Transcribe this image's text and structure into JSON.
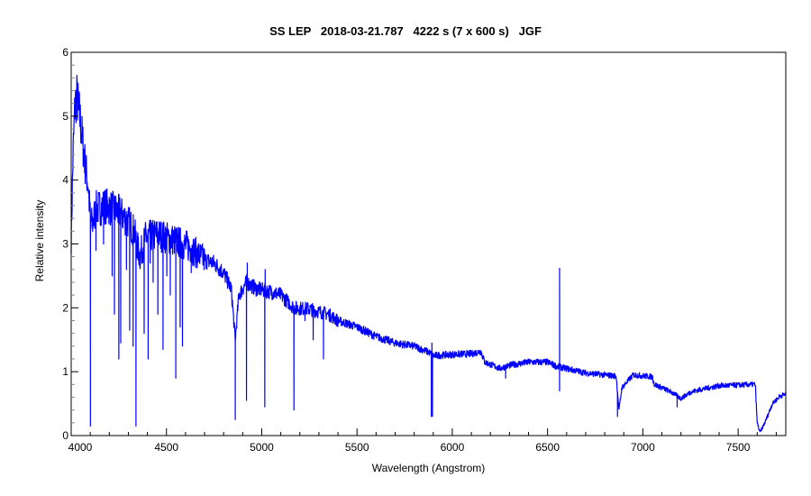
{
  "chart_data": {
    "type": "line",
    "title": "SS LEP   2018-03-21.787   4222 s (7 x 600 s)   JGF",
    "xlabel": "Wavelength (Angstrom)",
    "ylabel": "Relative intensity",
    "xlim": [
      4000,
      7750
    ],
    "ylim": [
      0,
      6
    ],
    "xticks": [
      4000,
      4500,
      5000,
      5500,
      6000,
      6500,
      7000,
      7500
    ],
    "yticks": [
      0,
      1,
      2,
      3,
      4,
      5,
      6
    ],
    "x_minor_step": 100,
    "y_minor_step": 0.2,
    "grid": false,
    "legend": null,
    "line_color": "#0000ff",
    "series": [
      {
        "name": "SS Lep spectrum",
        "continuum": [
          [
            4000,
            3.1
          ],
          [
            4010,
            4.4
          ],
          [
            4020,
            5.2
          ],
          [
            4030,
            5.3
          ],
          [
            4045,
            5.0
          ],
          [
            4060,
            4.6
          ],
          [
            4075,
            4.2
          ],
          [
            4090,
            3.9
          ],
          [
            4100,
            3.4
          ],
          [
            4110,
            3.3
          ],
          [
            4130,
            3.55
          ],
          [
            4180,
            3.6
          ],
          [
            4250,
            3.5
          ],
          [
            4300,
            3.35
          ],
          [
            4330,
            3.2
          ],
          [
            4360,
            2.8
          ],
          [
            4390,
            3.1
          ],
          [
            4450,
            3.15
          ],
          [
            4550,
            3.05
          ],
          [
            4620,
            2.95
          ],
          [
            4700,
            2.75
          ],
          [
            4750,
            2.7
          ],
          [
            4800,
            2.55
          ],
          [
            4840,
            2.3
          ],
          [
            4861,
            1.5
          ],
          [
            4880,
            2.2
          ],
          [
            4920,
            2.4
          ],
          [
            4970,
            2.3
          ],
          [
            5050,
            2.25
          ],
          [
            5100,
            2.2
          ],
          [
            5170,
            2.0
          ],
          [
            5250,
            1.98
          ],
          [
            5350,
            1.9
          ],
          [
            5400,
            1.8
          ],
          [
            5500,
            1.7
          ],
          [
            5600,
            1.55
          ],
          [
            5700,
            1.45
          ],
          [
            5800,
            1.4
          ],
          [
            5880,
            1.3
          ],
          [
            5900,
            1.25
          ],
          [
            6000,
            1.27
          ],
          [
            6100,
            1.28
          ],
          [
            6150,
            1.32
          ],
          [
            6170,
            1.15
          ],
          [
            6250,
            1.05
          ],
          [
            6300,
            1.1
          ],
          [
            6400,
            1.15
          ],
          [
            6500,
            1.15
          ],
          [
            6550,
            1.08
          ],
          [
            6600,
            1.05
          ],
          [
            6700,
            0.98
          ],
          [
            6800,
            0.95
          ],
          [
            6860,
            0.93
          ],
          [
            6875,
            0.4
          ],
          [
            6890,
            0.75
          ],
          [
            6950,
            0.95
          ],
          [
            7050,
            0.92
          ],
          [
            7060,
            0.8
          ],
          [
            7100,
            0.75
          ],
          [
            7150,
            0.68
          ],
          [
            7200,
            0.58
          ],
          [
            7250,
            0.68
          ],
          [
            7300,
            0.72
          ],
          [
            7400,
            0.78
          ],
          [
            7590,
            0.8
          ],
          [
            7600,
            0.2
          ],
          [
            7615,
            0.05
          ],
          [
            7640,
            0.2
          ],
          [
            7680,
            0.5
          ],
          [
            7720,
            0.62
          ],
          [
            7750,
            0.65
          ]
        ],
        "absorption_lines": [
          [
            4101,
            0.15
          ],
          [
            4130,
            2.9
          ],
          [
            4170,
            3.0
          ],
          [
            4215,
            2.5
          ],
          [
            4227,
            1.9
          ],
          [
            4250,
            1.2
          ],
          [
            4260,
            1.45
          ],
          [
            4290,
            2.6
          ],
          [
            4307,
            1.65
          ],
          [
            4325,
            1.4
          ],
          [
            4340,
            0.15
          ],
          [
            4383,
            1.6
          ],
          [
            4404,
            1.2
          ],
          [
            4415,
            2.7
          ],
          [
            4430,
            2.4
          ],
          [
            4455,
            1.9
          ],
          [
            4482,
            1.35
          ],
          [
            4502,
            2.5
          ],
          [
            4520,
            2.2
          ],
          [
            4549,
            0.9
          ],
          [
            4572,
            1.7
          ],
          [
            4584,
            1.4
          ],
          [
            4630,
            2.55
          ],
          [
            4861,
            0.25
          ],
          [
            4920,
            0.55
          ],
          [
            5016,
            0.45
          ],
          [
            5169,
            0.4
          ],
          [
            5183,
            1.9
          ],
          [
            5227,
            1.8
          ],
          [
            5270,
            1.5
          ],
          [
            5324,
            1.2
          ],
          [
            5890,
            0.3
          ],
          [
            5896,
            0.3
          ],
          [
            6280,
            0.9
          ],
          [
            6563,
            0.7
          ],
          [
            6867,
            0.3
          ],
          [
            7180,
            0.45
          ]
        ],
        "emission_lines": [
          [
            4040,
            5.35
          ],
          [
            4470,
            3.15
          ],
          [
            4924,
            2.7
          ],
          [
            5018,
            2.6
          ],
          [
            5893,
            1.45
          ],
          [
            6563,
            2.62
          ]
        ],
        "noise": 0.06
      }
    ]
  }
}
